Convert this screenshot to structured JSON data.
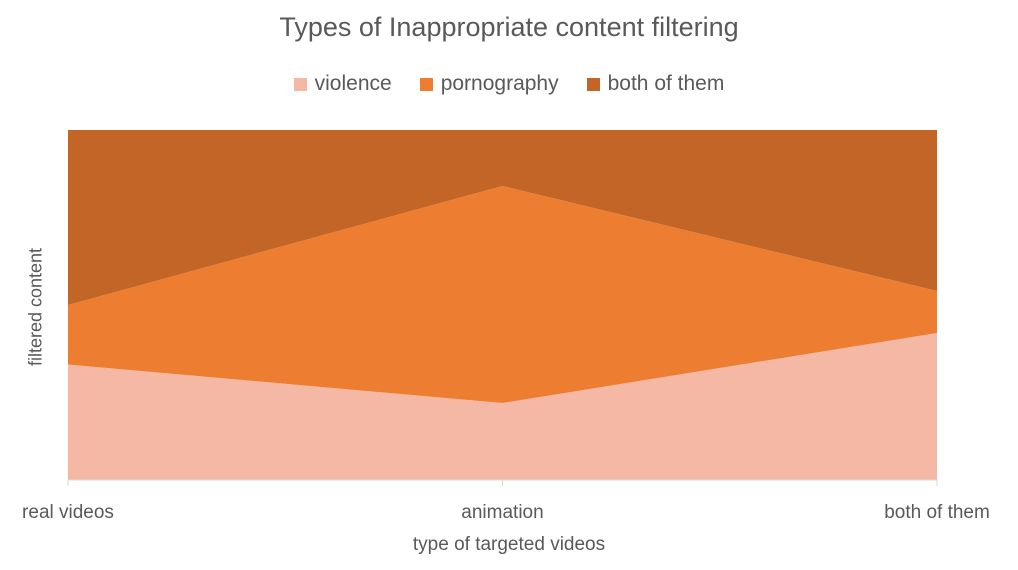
{
  "chart_data": {
    "type": "area",
    "stacked": true,
    "normalized": true,
    "title": "Types of Inappropriate content filtering",
    "xlabel": "type of targeted videos",
    "ylabel": "filtered content",
    "categories": [
      "real videos",
      "animation",
      "both of them"
    ],
    "series": [
      {
        "name": "violence",
        "color": "#F4B8A4",
        "values": [
          33,
          22,
          42
        ]
      },
      {
        "name": "pornography",
        "color": "#ED7D31",
        "values": [
          17,
          62,
          12
        ]
      },
      {
        "name": "both of them",
        "color": "#C46528",
        "values": [
          50,
          16,
          46
        ]
      }
    ],
    "ylim": [
      0,
      100
    ],
    "legend_position": "top",
    "grid": false
  }
}
